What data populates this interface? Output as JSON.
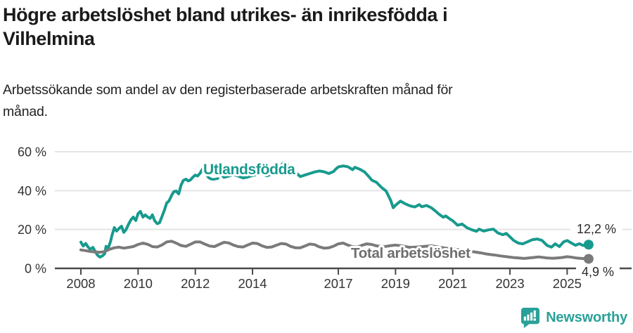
{
  "header": {
    "title_lines": [
      "Högre arbetslöshet bland utrikes- än inrikesfödda i",
      "Vilhelmina"
    ],
    "subtitle_lines": [
      "Arbetssökande som andel av den registerbaserade arbetskraften månad för",
      "månad."
    ]
  },
  "footer": {
    "brand": "Newsworthy"
  },
  "colors": {
    "teal": "#189a8e",
    "gray": "#7a7a7a",
    "grid": "#e4e4e4",
    "axis": "#4a4a4a",
    "tick_text": "#333333",
    "value_text": "#2b2b2b",
    "label_gray": "#6f6f6f",
    "logo_teal": "#2aa198"
  },
  "chart_data": {
    "type": "line",
    "title": "Högre arbetslöshet bland utrikes- än inrikesfödda i Vilhelmina",
    "subtitle": "Arbetssökande som andel av den registerbaserade arbetskraften månad för månad.",
    "xlabel": "",
    "ylabel": "",
    "ylim": [
      0,
      60
    ],
    "xlim": [
      2007.3,
      2026.2
    ],
    "grid": true,
    "legend": "inline-labels",
    "y_ticks": [
      {
        "value": 60,
        "label": "60 %"
      },
      {
        "value": 40,
        "label": "40 %"
      },
      {
        "value": 20,
        "label": "20 %"
      },
      {
        "value": 0,
        "label": "0 %"
      }
    ],
    "x_ticks": [
      {
        "year": 2008,
        "label": "2008"
      },
      {
        "year": 2010,
        "label": "2010"
      },
      {
        "year": 2012,
        "label": "2012"
      },
      {
        "year": 2014,
        "label": "2014"
      },
      {
        "year": 2017,
        "label": "2017"
      },
      {
        "year": 2019,
        "label": "2019"
      },
      {
        "year": 2021,
        "label": "2021"
      },
      {
        "year": 2023,
        "label": "2023"
      },
      {
        "year": 2025,
        "label": "2025"
      }
    ],
    "series": [
      {
        "name": "Utlandsfödda",
        "color_key": "teal",
        "end_label": "12,2 %",
        "end_value": 12.2,
        "points": [
          [
            2008.0,
            13.5
          ],
          [
            2008.08,
            11.5
          ],
          [
            2008.17,
            12.8
          ],
          [
            2008.25,
            11.0
          ],
          [
            2008.33,
            9.8
          ],
          [
            2008.42,
            10.8
          ],
          [
            2008.5,
            8.8
          ],
          [
            2008.58,
            6.8
          ],
          [
            2008.67,
            5.8
          ],
          [
            2008.75,
            6.4
          ],
          [
            2008.83,
            7.5
          ],
          [
            2008.88,
            11.3
          ],
          [
            2008.96,
            10.6
          ],
          [
            2009.04,
            14.0
          ],
          [
            2009.08,
            16.6
          ],
          [
            2009.17,
            21.0
          ],
          [
            2009.25,
            19.2
          ],
          [
            2009.33,
            20.5
          ],
          [
            2009.42,
            21.7
          ],
          [
            2009.5,
            18.5
          ],
          [
            2009.58,
            20.0
          ],
          [
            2009.67,
            22.8
          ],
          [
            2009.75,
            25.0
          ],
          [
            2009.83,
            26.4
          ],
          [
            2009.92,
            24.6
          ],
          [
            2010.0,
            28.2
          ],
          [
            2010.08,
            29.3
          ],
          [
            2010.17,
            26.4
          ],
          [
            2010.25,
            27.5
          ],
          [
            2010.33,
            26.5
          ],
          [
            2010.42,
            25.7
          ],
          [
            2010.5,
            27.5
          ],
          [
            2010.58,
            24.5
          ],
          [
            2010.67,
            23.0
          ],
          [
            2010.75,
            23.5
          ],
          [
            2010.83,
            26.5
          ],
          [
            2010.92,
            30.0
          ],
          [
            2011.0,
            33.6
          ],
          [
            2011.08,
            34.7
          ],
          [
            2011.17,
            37.5
          ],
          [
            2011.25,
            39.5
          ],
          [
            2011.33,
            39.8
          ],
          [
            2011.42,
            38.3
          ],
          [
            2011.5,
            42.7
          ],
          [
            2011.58,
            45.2
          ],
          [
            2011.67,
            45.9
          ],
          [
            2011.75,
            45.0
          ],
          [
            2011.83,
            45.5
          ],
          [
            2011.92,
            47.0
          ],
          [
            2012.0,
            48.0
          ],
          [
            2012.08,
            47.5
          ],
          [
            2012.17,
            49.0
          ],
          [
            2012.25,
            51.0
          ],
          [
            2012.33,
            50.0
          ],
          [
            2012.42,
            49.0
          ],
          [
            2012.5,
            48.5
          ],
          [
            2012.58,
            49.0
          ],
          [
            2012.67,
            49.8
          ],
          [
            2012.75,
            50.0
          ],
          [
            2012.83,
            49.0
          ],
          [
            2012.92,
            48.2
          ],
          [
            2013.0,
            46.8
          ],
          [
            2013.17,
            47.5
          ],
          [
            2013.33,
            48.2
          ],
          [
            2013.5,
            47.5
          ],
          [
            2013.67,
            46.5
          ],
          [
            2013.83,
            47.0
          ],
          [
            2014.0,
            47.8
          ],
          [
            2014.17,
            48.3
          ],
          [
            2014.33,
            48.6
          ],
          [
            2014.5,
            47.6
          ],
          [
            2014.67,
            48.5
          ],
          [
            2014.83,
            50.5
          ],
          [
            2015.0,
            53.0
          ],
          [
            2015.08,
            54.3
          ],
          [
            2015.17,
            54.0
          ],
          [
            2015.33,
            52.0
          ],
          [
            2015.5,
            49.5
          ],
          [
            2015.67,
            47.2
          ],
          [
            2015.83,
            48.0
          ],
          [
            2016.0,
            48.8
          ],
          [
            2016.17,
            49.6
          ],
          [
            2016.33,
            50.1
          ],
          [
            2016.5,
            49.7
          ],
          [
            2016.67,
            48.8
          ],
          [
            2016.83,
            49.8
          ],
          [
            2016.92,
            51.2
          ],
          [
            2017.0,
            52.2
          ],
          [
            2017.17,
            52.7
          ],
          [
            2017.33,
            52.3
          ],
          [
            2017.5,
            50.8
          ],
          [
            2017.58,
            52.0
          ],
          [
            2017.75,
            51.0
          ],
          [
            2017.92,
            49.6
          ],
          [
            2018.08,
            47.0
          ],
          [
            2018.17,
            45.4
          ],
          [
            2018.33,
            44.3
          ],
          [
            2018.5,
            41.8
          ],
          [
            2018.67,
            39.8
          ],
          [
            2018.83,
            35.0
          ],
          [
            2018.92,
            31.2
          ],
          [
            2019.0,
            32.5
          ],
          [
            2019.17,
            34.6
          ],
          [
            2019.33,
            33.3
          ],
          [
            2019.5,
            32.2
          ],
          [
            2019.67,
            31.6
          ],
          [
            2019.83,
            32.8
          ],
          [
            2019.92,
            31.7
          ],
          [
            2020.08,
            32.4
          ],
          [
            2020.25,
            31.2
          ],
          [
            2020.42,
            29.2
          ],
          [
            2020.5,
            28.1
          ],
          [
            2020.67,
            26.3
          ],
          [
            2020.75,
            27.0
          ],
          [
            2020.92,
            25.2
          ],
          [
            2021.0,
            24.5
          ],
          [
            2021.17,
            22.2
          ],
          [
            2021.33,
            22.8
          ],
          [
            2021.5,
            20.9
          ],
          [
            2021.67,
            19.8
          ],
          [
            2021.83,
            19.1
          ],
          [
            2021.92,
            20.2
          ],
          [
            2022.08,
            19.2
          ],
          [
            2022.25,
            19.8
          ],
          [
            2022.42,
            20.2
          ],
          [
            2022.58,
            18.2
          ],
          [
            2022.75,
            17.3
          ],
          [
            2022.87,
            18.0
          ],
          [
            2023.0,
            16.2
          ],
          [
            2023.13,
            14.4
          ],
          [
            2023.29,
            13.0
          ],
          [
            2023.45,
            12.6
          ],
          [
            2023.62,
            13.7
          ],
          [
            2023.79,
            14.8
          ],
          [
            2023.95,
            15.1
          ],
          [
            2024.12,
            14.4
          ],
          [
            2024.29,
            11.9
          ],
          [
            2024.45,
            10.9
          ],
          [
            2024.58,
            12.6
          ],
          [
            2024.73,
            11.2
          ],
          [
            2024.87,
            13.6
          ],
          [
            2025.0,
            14.3
          ],
          [
            2025.15,
            13.0
          ],
          [
            2025.29,
            11.9
          ],
          [
            2025.43,
            12.7
          ],
          [
            2025.56,
            11.8
          ],
          [
            2025.67,
            12.0
          ],
          [
            2025.75,
            12.2
          ]
        ]
      },
      {
        "name": "Total arbetslöshet",
        "color_key": "gray",
        "end_label": "4,9 %",
        "end_value": 4.9,
        "points": [
          [
            2008.0,
            9.5
          ],
          [
            2008.17,
            9.1
          ],
          [
            2008.33,
            8.7
          ],
          [
            2008.5,
            8.4
          ],
          [
            2008.67,
            8.3
          ],
          [
            2008.83,
            8.6
          ],
          [
            2009.0,
            9.8
          ],
          [
            2009.17,
            10.6
          ],
          [
            2009.33,
            10.9
          ],
          [
            2009.5,
            10.4
          ],
          [
            2009.67,
            10.8
          ],
          [
            2009.83,
            11.2
          ],
          [
            2010.0,
            12.3
          ],
          [
            2010.17,
            13.0
          ],
          [
            2010.33,
            12.4
          ],
          [
            2010.5,
            11.2
          ],
          [
            2010.67,
            11.0
          ],
          [
            2010.83,
            12.0
          ],
          [
            2011.0,
            13.6
          ],
          [
            2011.17,
            14.0
          ],
          [
            2011.33,
            13.0
          ],
          [
            2011.5,
            11.8
          ],
          [
            2011.67,
            11.3
          ],
          [
            2011.83,
            12.4
          ],
          [
            2012.0,
            13.6
          ],
          [
            2012.17,
            13.6
          ],
          [
            2012.33,
            12.5
          ],
          [
            2012.5,
            11.5
          ],
          [
            2012.67,
            11.2
          ],
          [
            2012.83,
            12.3
          ],
          [
            2013.0,
            13.4
          ],
          [
            2013.17,
            13.1
          ],
          [
            2013.33,
            12.0
          ],
          [
            2013.5,
            11.2
          ],
          [
            2013.67,
            11.0
          ],
          [
            2013.83,
            12.0
          ],
          [
            2014.0,
            13.0
          ],
          [
            2014.17,
            12.8
          ],
          [
            2014.33,
            11.6
          ],
          [
            2014.5,
            10.8
          ],
          [
            2014.67,
            11.0
          ],
          [
            2014.83,
            11.9
          ],
          [
            2015.0,
            12.8
          ],
          [
            2015.17,
            12.5
          ],
          [
            2015.33,
            11.3
          ],
          [
            2015.5,
            10.6
          ],
          [
            2015.67,
            10.6
          ],
          [
            2015.83,
            11.5
          ],
          [
            2016.0,
            12.5
          ],
          [
            2016.17,
            12.2
          ],
          [
            2016.33,
            11.1
          ],
          [
            2016.5,
            10.4
          ],
          [
            2016.67,
            10.6
          ],
          [
            2016.83,
            11.4
          ],
          [
            2017.0,
            12.6
          ],
          [
            2017.17,
            13.0
          ],
          [
            2017.33,
            12.0
          ],
          [
            2017.5,
            11.1
          ],
          [
            2017.67,
            11.0
          ],
          [
            2017.83,
            11.9
          ],
          [
            2018.0,
            12.6
          ],
          [
            2018.17,
            12.3
          ],
          [
            2018.33,
            11.6
          ],
          [
            2018.5,
            11.2
          ],
          [
            2018.67,
            11.3
          ],
          [
            2018.83,
            11.7
          ],
          [
            2019.0,
            12.0
          ],
          [
            2019.25,
            11.5
          ],
          [
            2019.5,
            10.8
          ],
          [
            2019.75,
            11.0
          ],
          [
            2020.0,
            11.3
          ],
          [
            2020.25,
            11.6
          ],
          [
            2020.5,
            11.0
          ],
          [
            2020.75,
            10.4
          ],
          [
            2021.0,
            10.0
          ],
          [
            2021.25,
            9.5
          ],
          [
            2021.5,
            8.9
          ],
          [
            2021.75,
            8.5
          ],
          [
            2022.0,
            7.9
          ],
          [
            2022.17,
            7.4
          ],
          [
            2022.33,
            7.1
          ],
          [
            2022.5,
            6.8
          ],
          [
            2022.67,
            6.4
          ],
          [
            2022.83,
            6.1
          ],
          [
            2023.0,
            5.8
          ],
          [
            2023.17,
            5.5
          ],
          [
            2023.33,
            5.3
          ],
          [
            2023.5,
            5.1
          ],
          [
            2023.67,
            5.4
          ],
          [
            2023.83,
            5.6
          ],
          [
            2024.0,
            5.9
          ],
          [
            2024.17,
            5.6
          ],
          [
            2024.33,
            5.3
          ],
          [
            2024.5,
            5.2
          ],
          [
            2024.67,
            5.4
          ],
          [
            2024.83,
            5.6
          ],
          [
            2025.0,
            6.0
          ],
          [
            2025.17,
            5.7
          ],
          [
            2025.33,
            5.3
          ],
          [
            2025.5,
            5.1
          ],
          [
            2025.62,
            5.0
          ],
          [
            2025.75,
            4.9
          ]
        ]
      }
    ]
  }
}
